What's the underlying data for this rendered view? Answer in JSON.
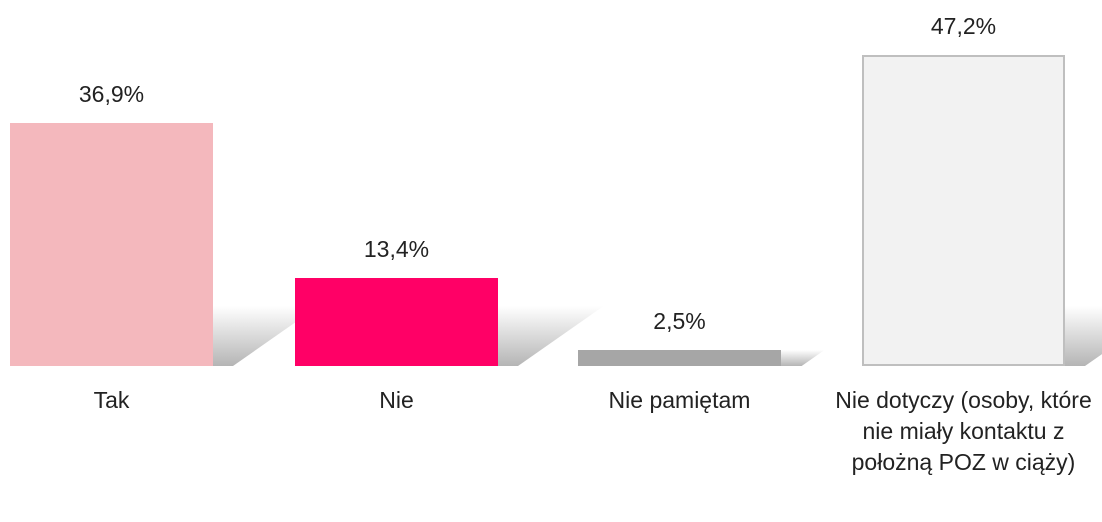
{
  "chart_data": {
    "type": "bar",
    "categories": [
      "Tak",
      "Nie",
      "Nie pamiętam",
      "Nie dotyczy (osoby, które nie miały kontaktu z położną POZ w ciąży)"
    ],
    "values": [
      36.9,
      13.4,
      2.5,
      47.2
    ],
    "value_labels": [
      "36,9%",
      "13,4%",
      "2,5%",
      "47,2%"
    ],
    "colors": [
      "#f4b8bd",
      "#ff0066",
      "#a6a6a6",
      "#f2f2f2"
    ]
  }
}
